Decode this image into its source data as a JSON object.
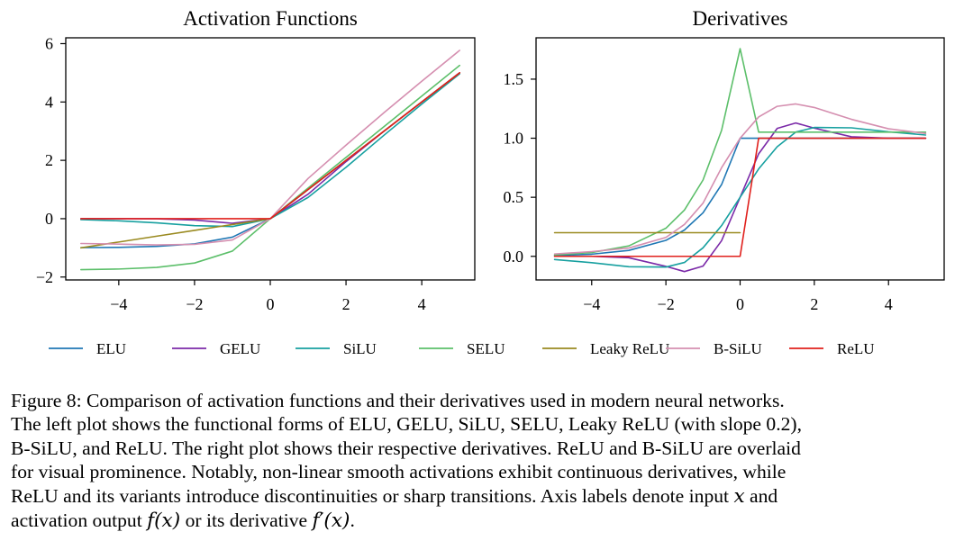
{
  "chart_data": [
    {
      "type": "line",
      "title": "Activation Functions",
      "xlabel": "",
      "ylabel": "",
      "xlim": [
        -5.4,
        5.4
      ],
      "ylim": [
        -2.1,
        6.2
      ],
      "xticks": [
        -4,
        -2,
        0,
        2,
        4
      ],
      "yticks": [
        -2,
        0,
        2,
        4,
        6
      ],
      "xtick_labels": [
        "−4",
        "−2",
        "0",
        "2",
        "4"
      ],
      "ytick_labels": [
        "−2",
        "0",
        "2",
        "4",
        "6"
      ],
      "grid": false,
      "x": [
        -5,
        -4,
        -3,
        -2,
        -1,
        0,
        1,
        2,
        3,
        4,
        5
      ],
      "series": [
        {
          "name": "ELU",
          "color": "#1f77b4",
          "values": [
            -0.993,
            -0.982,
            -0.95,
            -0.865,
            -0.632,
            0,
            1,
            2,
            3,
            4,
            5
          ]
        },
        {
          "name": "GELU",
          "color": "#7b2aa8",
          "values": [
            0,
            0,
            -0.004,
            -0.045,
            -0.159,
            0,
            0.841,
            1.955,
            2.996,
            4,
            5
          ]
        },
        {
          "name": "SiLU",
          "color": "#17a0a0",
          "values": [
            -0.033,
            -0.072,
            -0.142,
            -0.238,
            -0.269,
            0,
            0.731,
            1.762,
            2.858,
            3.928,
            4.967
          ]
        },
        {
          "name": "SELU",
          "color": "#5cbf6a",
          "values": [
            -1.746,
            -1.726,
            -1.67,
            -1.52,
            -1.111,
            0,
            1.051,
            2.101,
            3.152,
            4.203,
            5.254
          ]
        },
        {
          "name": "Leaky ReLU",
          "color": "#9a8a20",
          "values": [
            -1,
            -0.8,
            -0.6,
            -0.4,
            -0.2,
            0,
            1,
            2,
            3,
            4,
            5
          ]
        },
        {
          "name": "B-SiLU",
          "color": "#d58fb0",
          "values": [
            -0.85,
            -0.87,
            -0.9,
            -0.88,
            -0.73,
            0,
            1.38,
            2.52,
            3.63,
            4.71,
            5.77
          ]
        },
        {
          "name": "ReLU",
          "color": "#e0201c",
          "values": [
            0,
            0,
            0,
            0,
            0,
            0,
            1,
            2,
            3,
            4,
            5
          ]
        }
      ]
    },
    {
      "type": "line",
      "title": "Derivatives",
      "xlabel": "",
      "ylabel": "",
      "xlim": [
        -5.5,
        5.5
      ],
      "ylim": [
        -0.2,
        1.85
      ],
      "xticks": [
        -4,
        -2,
        0,
        2,
        4
      ],
      "yticks": [
        0.0,
        0.5,
        1.0,
        1.5
      ],
      "xtick_labels": [
        "−4",
        "−2",
        "0",
        "2",
        "4"
      ],
      "ytick_labels": [
        "0.0",
        "0.5",
        "1.0",
        "1.5"
      ],
      "grid": false,
      "x": [
        -5,
        -4,
        -3,
        -2,
        -1.5,
        -1,
        -0.5,
        0,
        0.5,
        1,
        1.5,
        2,
        3,
        4,
        5
      ],
      "series": [
        {
          "name": "ELU",
          "color": "#1f77b4",
          "values": [
            0.007,
            0.018,
            0.05,
            0.135,
            0.223,
            0.368,
            0.607,
            1,
            1,
            1,
            1,
            1,
            1,
            1,
            1
          ]
        },
        {
          "name": "GELU",
          "color": "#7b2aa8",
          "values": [
            0,
            0,
            -0.012,
            -0.085,
            -0.129,
            -0.083,
            0.132,
            0.5,
            0.868,
            1.083,
            1.129,
            1.085,
            1.012,
            1,
            1
          ]
        },
        {
          "name": "SiLU",
          "color": "#17a0a0",
          "values": [
            -0.027,
            -0.054,
            -0.088,
            -0.091,
            -0.052,
            0.072,
            0.26,
            0.5,
            0.74,
            0.928,
            1.052,
            1.091,
            1.088,
            1.054,
            1.027
          ]
        },
        {
          "name": "SELU",
          "color": "#5cbf6a",
          "values": [
            0.012,
            0.032,
            0.088,
            0.238,
            0.392,
            0.646,
            1.066,
            1.758,
            1.051,
            1.051,
            1.051,
            1.051,
            1.051,
            1.051,
            1.051
          ]
        },
        {
          "name": "Leaky ReLU",
          "color": "#9a8a20",
          "values": [
            0.2,
            0.2,
            0.2,
            0.2,
            0.2,
            0.2,
            0.2,
            0.2,
            null,
            null,
            null,
            null,
            null,
            null,
            null
          ]
        },
        {
          "name": "B-SiLU",
          "color": "#d58fb0",
          "values": [
            0.02,
            0.04,
            0.07,
            0.16,
            0.27,
            0.45,
            0.75,
            1.0,
            1.18,
            1.27,
            1.29,
            1.26,
            1.16,
            1.08,
            1.04
          ]
        },
        {
          "name": "ReLU",
          "color": "#e0201c",
          "values": [
            0,
            0,
            0,
            0,
            0,
            0,
            0,
            0,
            1,
            1,
            1,
            1,
            1,
            1,
            1
          ]
        }
      ]
    }
  ],
  "caption": {
    "lines": [
      "Figure 8: Comparison of activation functions and their derivatives used in modern neural networks.",
      "The left plot shows the functional forms of ELU, GELU, SiLU, SELU, Leaky ReLU (with slope 0.2),",
      "B-SiLU, and ReLU. The right plot shows their respective derivatives. ReLU and B-SiLU are overlaid",
      "for visual prominence. Notably, non-linear smooth activations exhibit continuous derivatives, while",
      "ReLU and its variants introduce discontinuities or sharp transitions. Axis labels denote input"
    ],
    "math_x": "x",
    "conj_and": "and",
    "line6_start": "activation output",
    "math_fx": "f(x)",
    "conj_or": "or its derivative",
    "math_dfx": "f′(x)",
    "end_period": "."
  }
}
